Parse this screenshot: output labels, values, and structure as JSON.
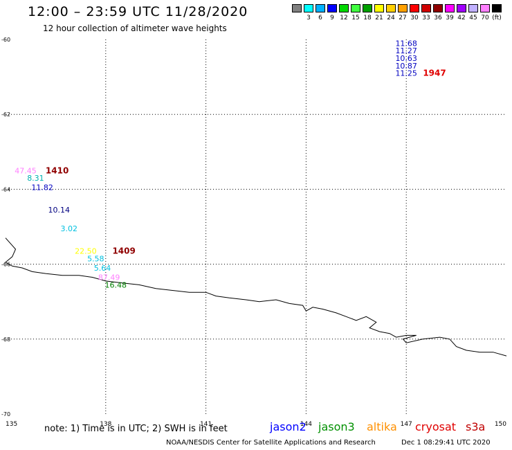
{
  "header": {
    "title": "12:00 – 23:59 UTC 11/28/2020",
    "subtitle": "12 hour collection of altimeter wave heights"
  },
  "legend": {
    "swatches": [
      {
        "color": "#808080",
        "label": ""
      },
      {
        "color": "#00ffff",
        "label": "3"
      },
      {
        "color": "#00b0ff",
        "label": "6"
      },
      {
        "color": "#0000ff",
        "label": "9"
      },
      {
        "color": "#00d800",
        "label": "12"
      },
      {
        "color": "#40ff40",
        "label": "15"
      },
      {
        "color": "#00a000",
        "label": "18"
      },
      {
        "color": "#ffff00",
        "label": "21"
      },
      {
        "color": "#ffd000",
        "label": "24"
      },
      {
        "color": "#ffa000",
        "label": "27"
      },
      {
        "color": "#ff0000",
        "label": "30"
      },
      {
        "color": "#d00000",
        "label": "33"
      },
      {
        "color": "#900000",
        "label": "36"
      },
      {
        "color": "#ff00ff",
        "label": "39"
      },
      {
        "color": "#a000ff",
        "label": "42"
      },
      {
        "color": "#c0b0ff",
        "label": "45"
      },
      {
        "color": "#ff80ff",
        "label": "70"
      },
      {
        "color": "#000000",
        "label": "(ft)"
      }
    ]
  },
  "map": {
    "lon_min": 135,
    "lon_max": 150,
    "lat_top": -60,
    "lat_bottom": -70,
    "lon_labels": [
      "135",
      "138",
      "141",
      "144",
      "147",
      "150"
    ],
    "lat_labels": [
      "-60",
      "-62",
      "-64",
      "-66",
      "-68",
      "-70"
    ],
    "grid": true,
    "coastline": [
      [
        135,
        -65.3
      ],
      [
        135.2,
        -65.5
      ],
      [
        135.3,
        -65.6
      ],
      [
        135.2,
        -65.8
      ],
      [
        135.0,
        -65.95
      ],
      [
        135.2,
        -66.05
      ],
      [
        135.5,
        -66.1
      ],
      [
        135.8,
        -66.2
      ],
      [
        136.2,
        -66.25
      ],
      [
        136.7,
        -66.3
      ],
      [
        137.2,
        -66.3
      ],
      [
        137.6,
        -66.35
      ],
      [
        138.0,
        -66.45
      ],
      [
        138.5,
        -66.5
      ],
      [
        139.0,
        -66.55
      ],
      [
        139.5,
        -66.65
      ],
      [
        140.0,
        -66.7
      ],
      [
        140.5,
        -66.75
      ],
      [
        141.0,
        -66.75
      ],
      [
        141.3,
        -66.85
      ],
      [
        141.7,
        -66.9
      ],
      [
        142.2,
        -66.95
      ],
      [
        142.6,
        -67.0
      ],
      [
        143.1,
        -66.95
      ],
      [
        143.5,
        -67.05
      ],
      [
        143.9,
        -67.1
      ],
      [
        144.0,
        -67.25
      ],
      [
        144.2,
        -67.15
      ],
      [
        144.5,
        -67.2
      ],
      [
        144.9,
        -67.3
      ],
      [
        145.2,
        -67.4
      ],
      [
        145.5,
        -67.5
      ],
      [
        145.8,
        -67.4
      ],
      [
        146.1,
        -67.55
      ],
      [
        145.9,
        -67.7
      ],
      [
        146.2,
        -67.8
      ],
      [
        146.5,
        -67.85
      ],
      [
        146.7,
        -67.95
      ],
      [
        147.0,
        -67.9
      ],
      [
        147.3,
        -67.9
      ],
      [
        146.9,
        -68.0
      ],
      [
        147.0,
        -68.1
      ],
      [
        147.5,
        -68.0
      ],
      [
        148.0,
        -67.95
      ],
      [
        148.3,
        -68.0
      ],
      [
        148.5,
        -68.2
      ],
      [
        148.8,
        -68.3
      ],
      [
        149.2,
        -68.35
      ],
      [
        149.6,
        -68.35
      ],
      [
        150.0,
        -68.45
      ]
    ],
    "points": [
      {
        "lon": 147.0,
        "lat": -60.1,
        "text": "11.68",
        "color": "#0000c0"
      },
      {
        "lon": 147.0,
        "lat": -60.3,
        "text": "11.27",
        "color": "#0000c0"
      },
      {
        "lon": 147.0,
        "lat": -60.5,
        "text": "10.63",
        "color": "#0000c0"
      },
      {
        "lon": 147.0,
        "lat": -60.7,
        "text": "10.87",
        "color": "#0000c0"
      },
      {
        "lon": 147.0,
        "lat": -60.9,
        "text": "11.25",
        "color": "#0000c0"
      },
      {
        "lon": 135.6,
        "lat": -63.5,
        "text": "47.45",
        "color": "#ff80ff"
      },
      {
        "lon": 135.9,
        "lat": -63.7,
        "text": "8.31",
        "color": "#00b0b0"
      },
      {
        "lon": 136.1,
        "lat": -63.95,
        "text": "11.82",
        "color": "#0000c0"
      },
      {
        "lon": 136.6,
        "lat": -64.55,
        "text": "10.14",
        "color": "#000080"
      },
      {
        "lon": 136.9,
        "lat": -65.05,
        "text": "3.02",
        "color": "#00c0e0"
      },
      {
        "lon": 137.4,
        "lat": -65.65,
        "text": "22.50",
        "color": "#ffff00"
      },
      {
        "lon": 137.7,
        "lat": -65.85,
        "text": "5.58",
        "color": "#00c0e0"
      },
      {
        "lon": 137.9,
        "lat": -66.1,
        "text": "5.64",
        "color": "#00c0e0"
      },
      {
        "lon": 138.1,
        "lat": -66.35,
        "text": "87.49",
        "color": "#ff80ff"
      },
      {
        "lon": 138.3,
        "lat": -66.55,
        "text": "16.48",
        "color": "#008000"
      }
    ],
    "time_labels": [
      {
        "lon": 147.5,
        "lat": -60.9,
        "text": "1947",
        "color": "#e00000"
      },
      {
        "lon": 136.2,
        "lat": -63.5,
        "text": "1410",
        "color": "#900000"
      },
      {
        "lon": 138.2,
        "lat": -65.65,
        "text": "1409",
        "color": "#900000"
      }
    ]
  },
  "footer": {
    "note": "note: 1) Time is in UTC; 2) SWH is in feet",
    "satellites": [
      {
        "name": "jason2",
        "color": "#0000ff"
      },
      {
        "name": "jason3",
        "color": "#009000"
      },
      {
        "name": "altika",
        "color": "#ff9000"
      },
      {
        "name": "cryosat",
        "color": "#e00000"
      },
      {
        "name": "s3a",
        "color": "#c00000"
      }
    ],
    "credit": "NOAA/NESDIS Center for Satellite Applications and Research",
    "timestamp": "Dec  1 08:29:41 UTC 2020"
  }
}
